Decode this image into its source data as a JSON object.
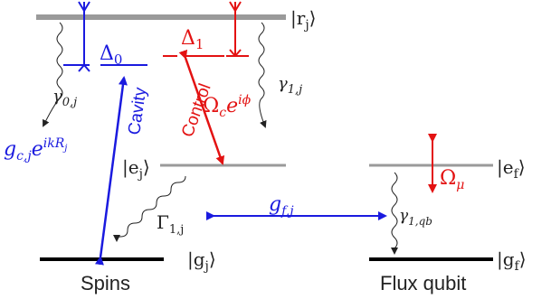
{
  "levels": {
    "r_j": "|r",
    "r_j_sub": "j",
    "e_j": "|e",
    "e_j_sub": "j",
    "g_j": "|g",
    "g_j_sub": "j",
    "e_f": "|e",
    "e_f_sub": "f",
    "g_f": "|g",
    "g_f_sub": "f"
  },
  "detunings": {
    "delta0": "Δ",
    "delta0_sub": "0",
    "delta1": "Δ",
    "delta1_sub": "1"
  },
  "decays": {
    "gamma0j": "γ",
    "gamma0j_sub": "0,j",
    "gamma1j": "γ",
    "gamma1j_sub": "1,j",
    "Gamma1j": "Γ",
    "Gamma1j_sub": "1,j",
    "gamma1qb": "γ",
    "gamma1qb_sub": "1,qb"
  },
  "couplings": {
    "cavity_label": "Cavity",
    "control_label": "Control",
    "gcj_main": "g",
    "gcj_sub": "c,j",
    "gcj_exp": "e",
    "gcj_exp_sup": "ikR",
    "gcj_exp_sup_sub": "j",
    "omega_c": "Ω",
    "omega_c_sub": "c",
    "omega_c_exp": "e",
    "omega_c_sup": "iϕ",
    "gfj": "g",
    "gfj_sub": "f,j",
    "omega_mu": "Ω",
    "omega_mu_sub": "μ"
  },
  "systems": {
    "spins": "Spins",
    "flux_qubit": "Flux qubit"
  },
  "colors": {
    "blue": "#1a1adf",
    "red": "#e31212",
    "black": "#000000",
    "grey": "#9a9a9a"
  }
}
